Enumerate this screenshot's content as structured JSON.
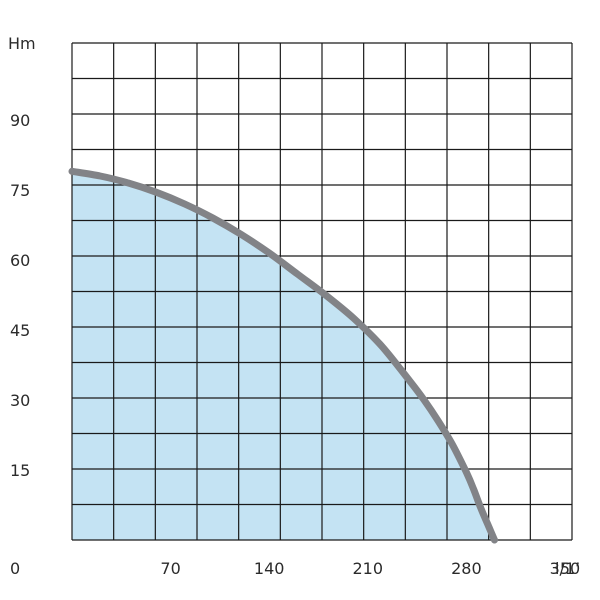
{
  "chart_data": {
    "type": "area",
    "title": "",
    "xlabel": "l/1’",
    "ylabel": "Hm",
    "xlim": [
      0,
      300
    ],
    "ylim": [
      0,
      100
    ],
    "x_tick_labels": [
      "0",
      "70",
      "140",
      "210",
      "280",
      "350"
    ],
    "x_tick_values": [
      0,
      70,
      140,
      210,
      280,
      350
    ],
    "y_tick_labels": [
      "15",
      "30",
      "45",
      "60",
      "75",
      "90"
    ],
    "y_tick_values": [
      15,
      30,
      45,
      60,
      75,
      90
    ],
    "grid": true,
    "series": [
      {
        "x": [
          0,
          20,
          40,
          60,
          80,
          100,
          120,
          140,
          160,
          180,
          200,
          220,
          240,
          250,
          260,
          270,
          280,
          285,
          290,
          295,
          300
        ],
        "y": [
          79,
          78,
          76.5,
          74.5,
          72,
          69,
          65.5,
          61.5,
          57,
          52.5,
          47.5,
          41.5,
          34,
          30,
          25.5,
          20.5,
          14.5,
          11,
          7,
          3.5,
          0
        ]
      }
    ],
    "colors": {
      "fill": "#c4e3f3",
      "curve": "#828387",
      "grid": "#1a1a1a",
      "text": "#2b2b2b"
    }
  }
}
